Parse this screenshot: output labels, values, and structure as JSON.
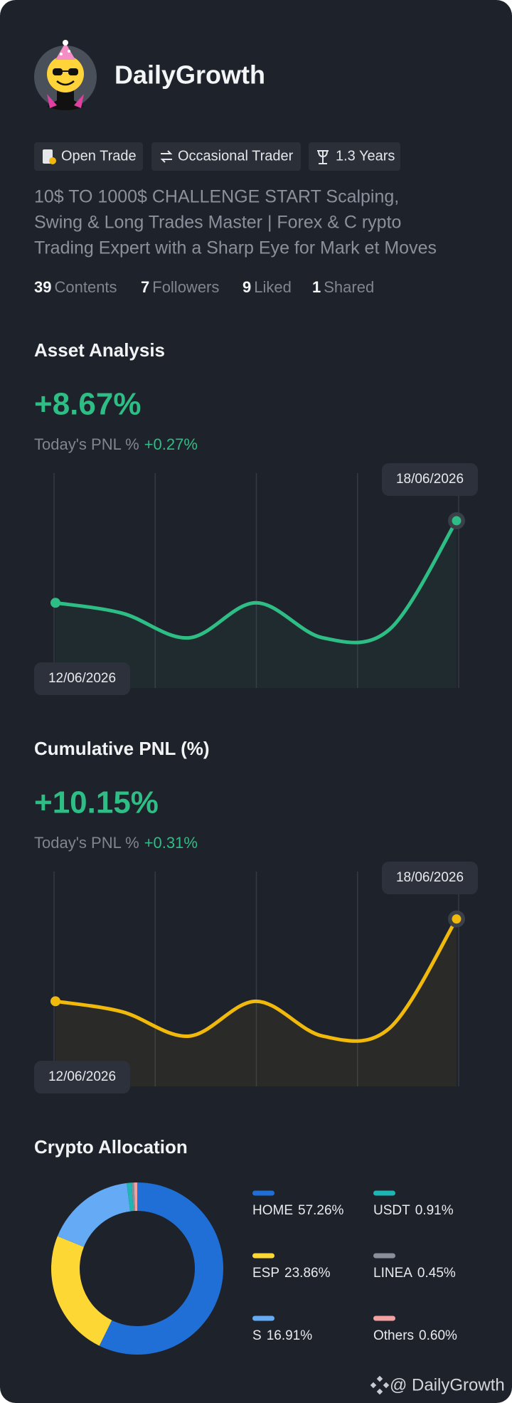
{
  "profile": {
    "name": "DailyGrowth",
    "tags": [
      "Open Trade",
      "Occasional Trader",
      "1.3 Years"
    ],
    "bio": [
      "10$ TO 1000$ CHALLENGE START Scalping,",
      "Swing & Long Trades Master | Forex & C rypto",
      "Trading Expert with a Sharp Eye for Mark et Moves"
    ],
    "stats": [
      {
        "count": 39,
        "label": "Contents"
      },
      {
        "count": 7,
        "label": "Followers"
      },
      {
        "count": 9,
        "label": "Liked"
      },
      {
        "count": 1,
        "label": "Shared"
      }
    ]
  },
  "chart_data": [
    {
      "type": "line",
      "title": "Asset Analysis",
      "headline": "+8.67%",
      "today_label": "Today's PNL %",
      "today_value": "+0.27%",
      "categories": [
        "12/06/2026",
        null,
        null,
        null,
        null,
        null,
        "18/06/2026"
      ],
      "values": [
        0,
        -1.1,
        -3.7,
        0,
        -3.7,
        -2.8,
        8.67
      ],
      "color": "#2ebd85",
      "ylim": [
        -9,
        13.7
      ]
    },
    {
      "type": "line",
      "title": "Cumulative PNL (%)",
      "headline": "+10.15%",
      "today_label": "Today's PNL %",
      "today_value": "+0.31%",
      "categories": [
        "12/06/2026",
        null,
        null,
        null,
        null,
        null,
        "18/06/2026"
      ],
      "values": [
        0,
        -1.3,
        -4.3,
        0,
        -4.3,
        -3.3,
        10.15
      ],
      "color": "#f0b90b",
      "ylim": [
        -10.5,
        16
      ]
    },
    {
      "type": "pie",
      "title": "Crypto Allocation",
      "categories": [
        "HOME",
        "ESP",
        "S",
        "USDT",
        "LINEA",
        "Others"
      ],
      "values": [
        57.26,
        23.86,
        16.91,
        0.91,
        0.45,
        0.6
      ],
      "value_labels": [
        "57.26%",
        "23.86%",
        "16.91%",
        "0.91%",
        "0.45%",
        "0.60%"
      ],
      "colors": [
        "#1f6fd6",
        "#fdd835",
        "#64aaf5",
        "#1eb5b5",
        "#8a8f99",
        "#f4a0a0"
      ]
    }
  ],
  "footer": "@ DailyGrowth"
}
